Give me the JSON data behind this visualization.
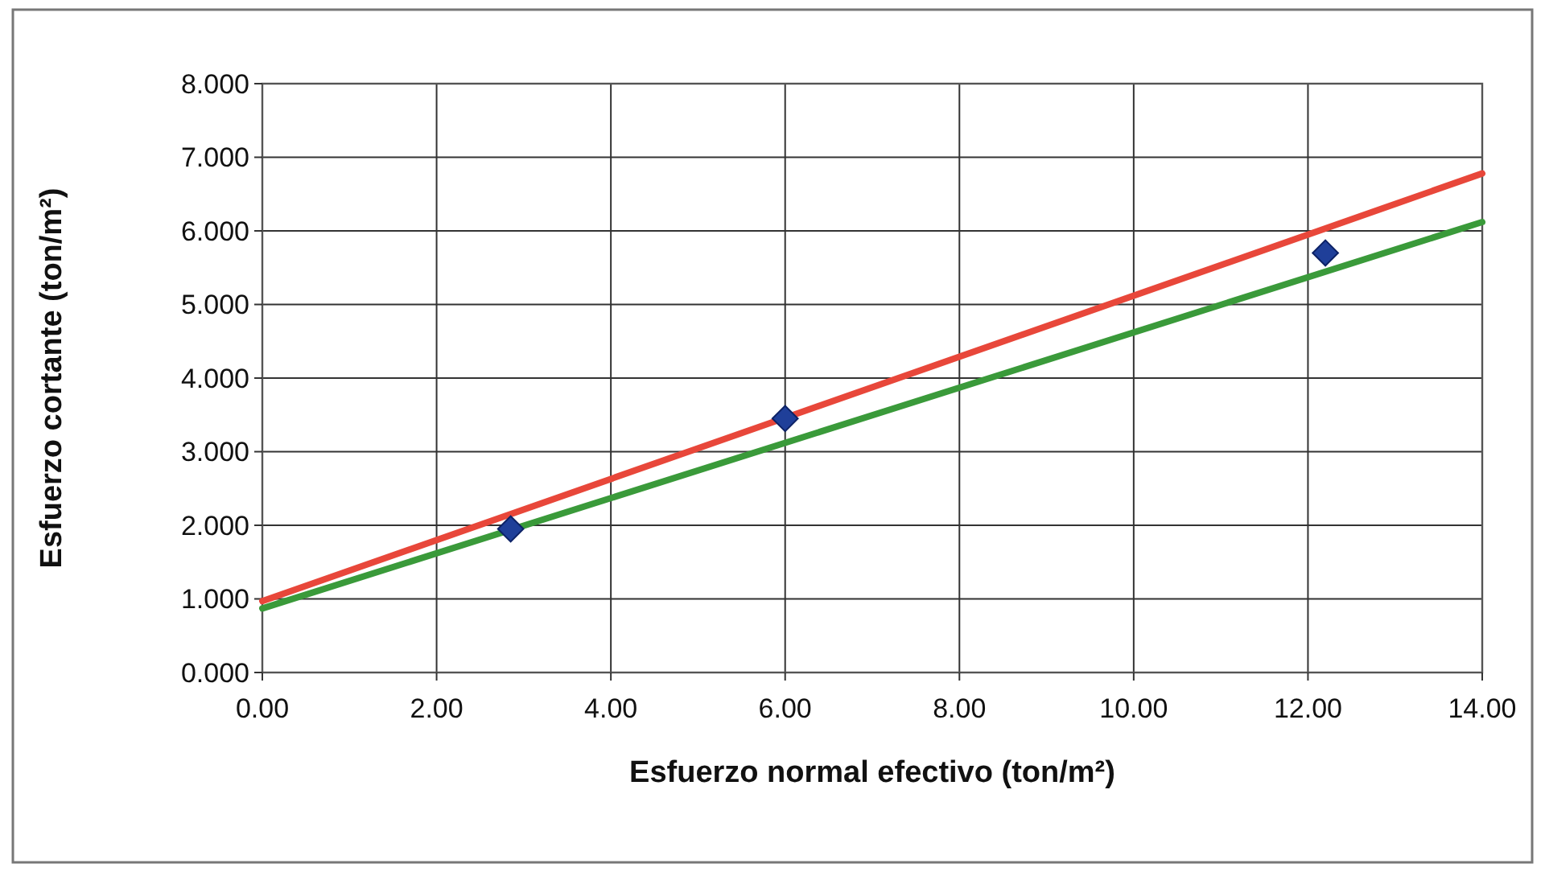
{
  "chart_data": {
    "type": "scatter",
    "xlabel": "Esfuerzo normal efectivo (ton/m²)",
    "ylabel": "Esfuerzo cortante (ton/m²)",
    "xlim": [
      0,
      14
    ],
    "ylim": [
      0,
      8
    ],
    "xticks": [
      {
        "value": 0,
        "label": "0.00"
      },
      {
        "value": 2,
        "label": "2.00"
      },
      {
        "value": 4,
        "label": "4.00"
      },
      {
        "value": 6,
        "label": "6.00"
      },
      {
        "value": 8,
        "label": "8.00"
      },
      {
        "value": 10,
        "label": "10.00"
      },
      {
        "value": 12,
        "label": "12.00"
      },
      {
        "value": 14,
        "label": "14.00"
      }
    ],
    "yticks": [
      {
        "value": 0,
        "label": "0.000"
      },
      {
        "value": 1,
        "label": "1.000"
      },
      {
        "value": 2,
        "label": "2.000"
      },
      {
        "value": 3,
        "label": "3.000"
      },
      {
        "value": 4,
        "label": "4.000"
      },
      {
        "value": 5,
        "label": "5.000"
      },
      {
        "value": 6,
        "label": "6.000"
      },
      {
        "value": 7,
        "label": "7.000"
      },
      {
        "value": 8,
        "label": "8.000"
      }
    ],
    "grid": true,
    "series": [
      {
        "type": "line",
        "color": "#e8473a",
        "x": [
          0,
          14
        ],
        "values": [
          0.97,
          6.78
        ],
        "marker": "none",
        "line_style": "solid"
      },
      {
        "type": "line",
        "color": "#3a9a3a",
        "x": [
          0,
          14
        ],
        "values": [
          0.87,
          6.12
        ],
        "marker": "none",
        "line_style": "solid"
      },
      {
        "color": "#1f3f99",
        "x": [
          2.85,
          6.0,
          12.2
        ],
        "values": [
          1.95,
          3.45,
          5.7
        ],
        "marker": "diamond"
      }
    ]
  }
}
